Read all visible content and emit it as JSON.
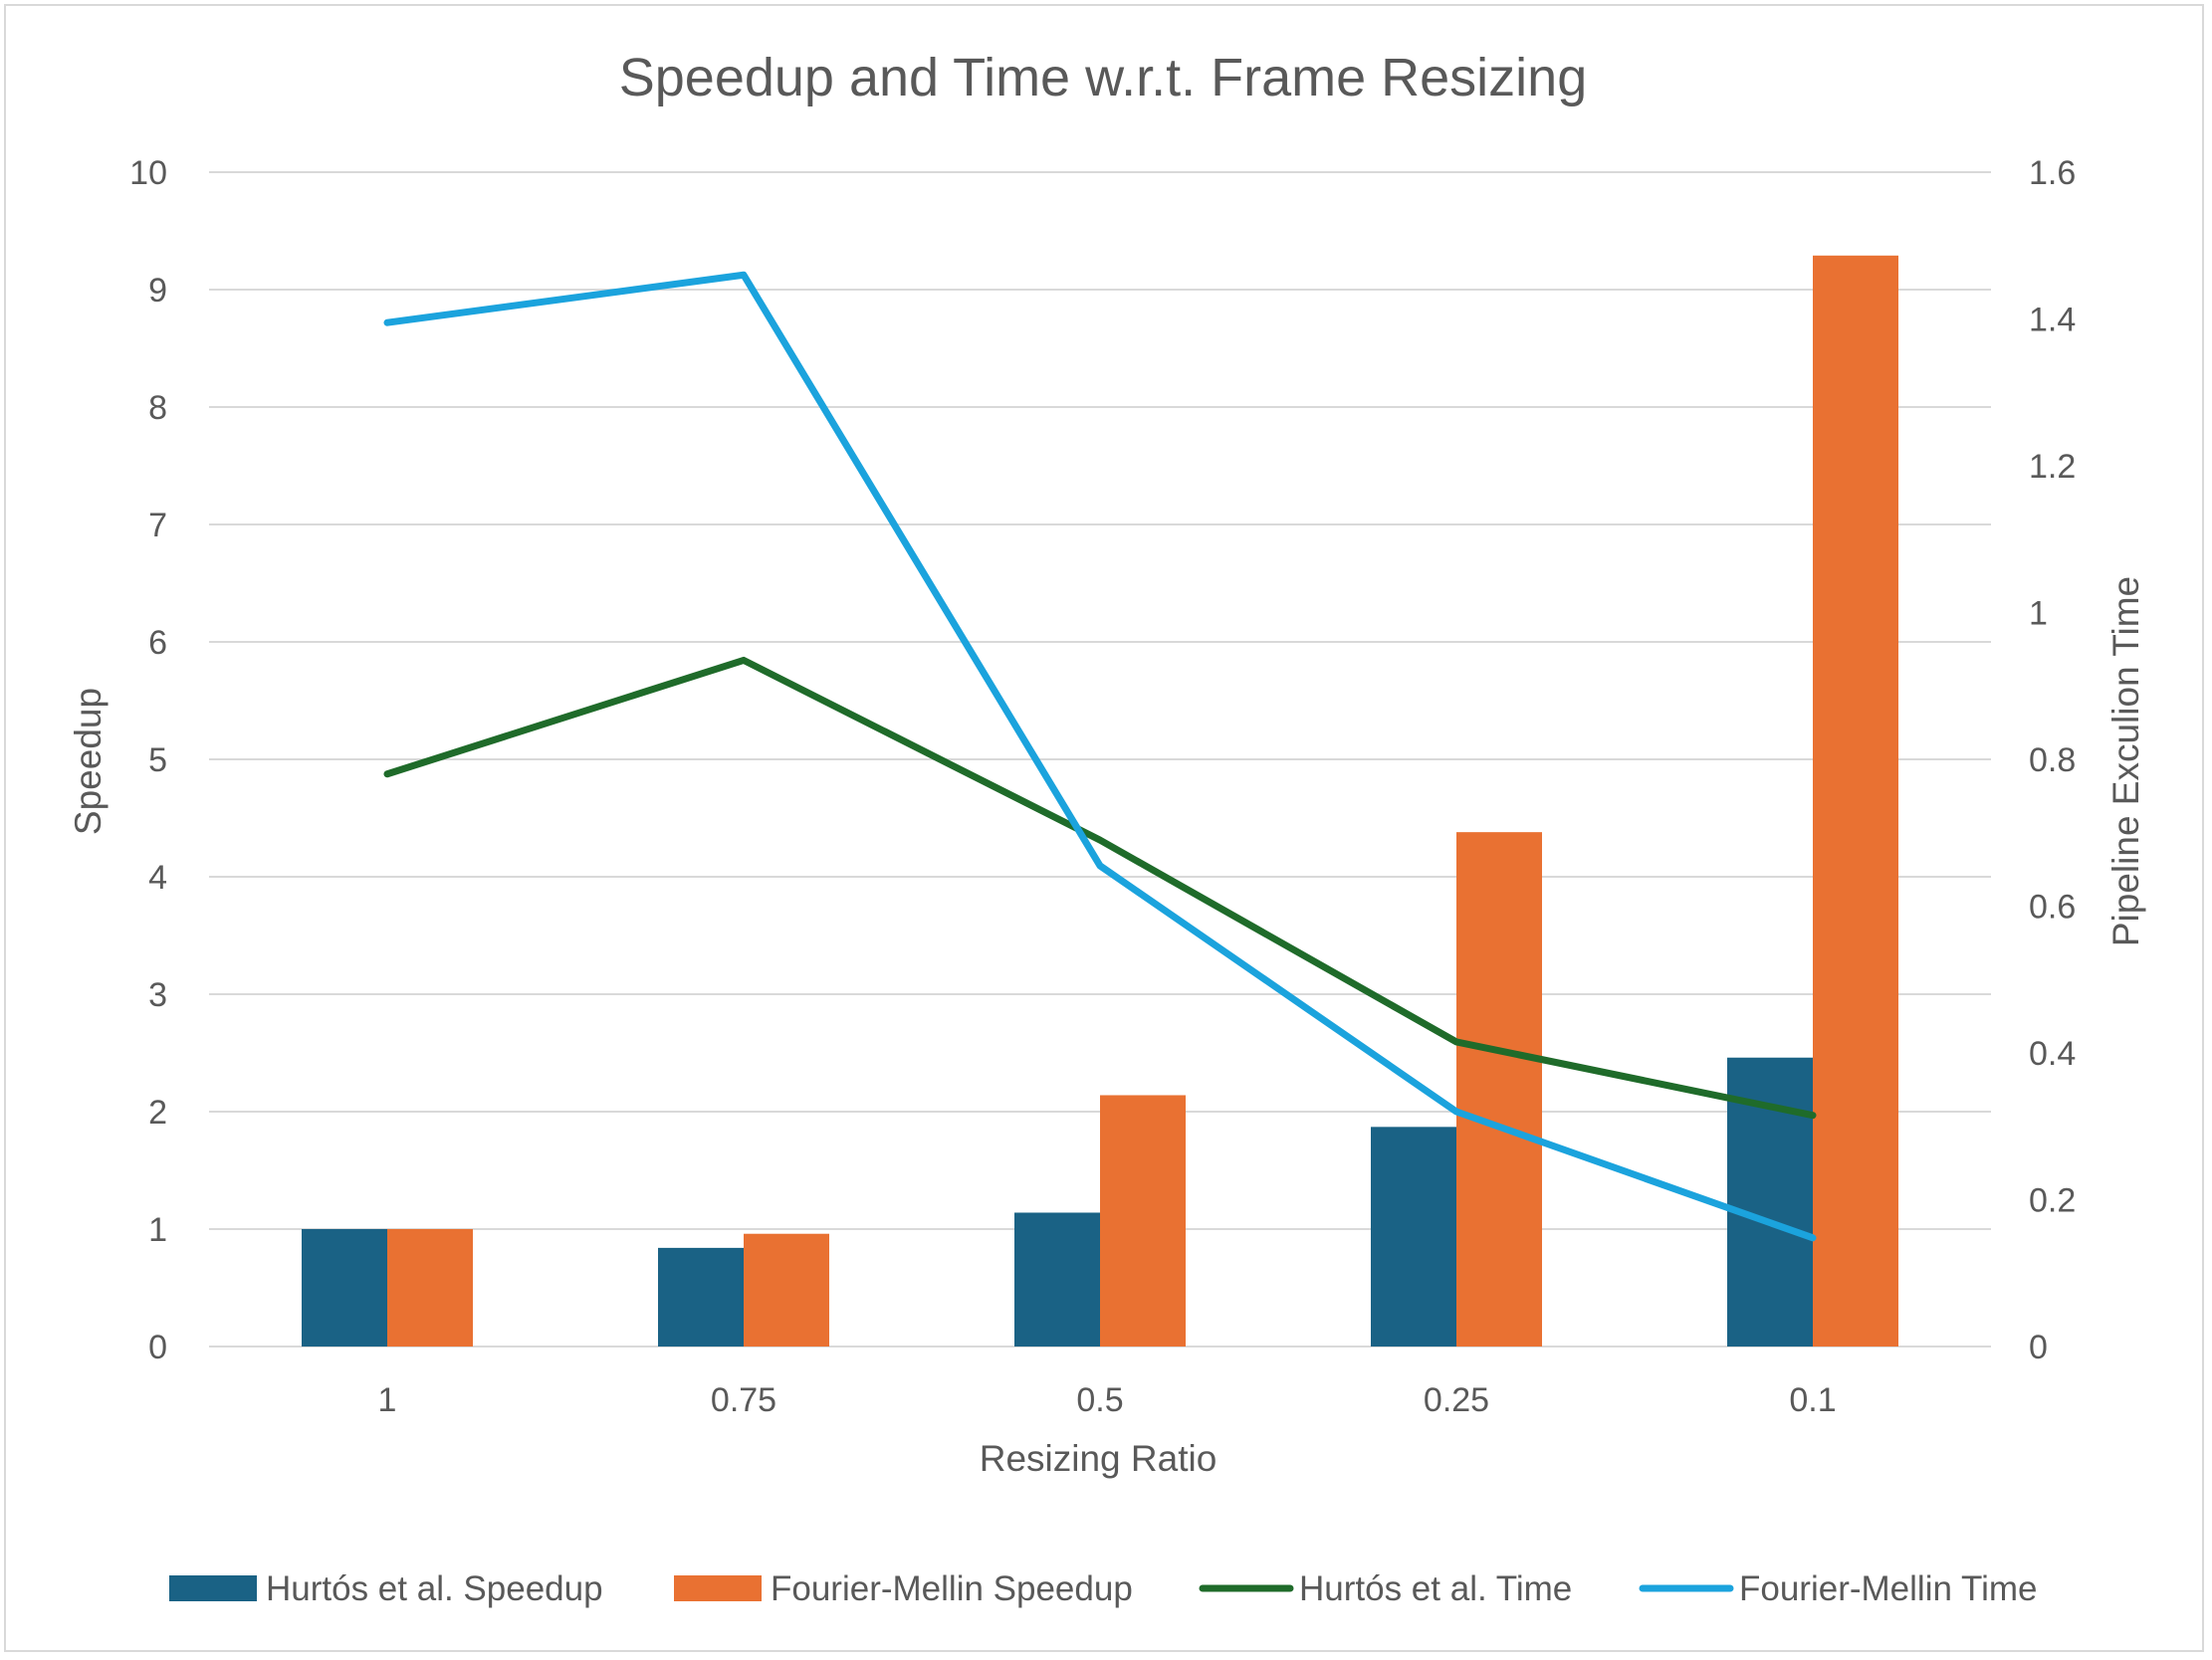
{
  "chart_data": {
    "type": "bar",
    "title": "Speedup and Time w.r.t. Frame Resizing",
    "xlabel": "Resizing Ratio",
    "ylabel": "Speedup",
    "y2label": "Pipeline Exculion Time",
    "categories": [
      "1",
      "0.75",
      "0.5",
      "0.25",
      "0.1"
    ],
    "ylim": [
      0,
      10
    ],
    "y2lim": [
      0,
      1.6
    ],
    "yticks": [
      "0",
      "1",
      "2",
      "3",
      "4",
      "5",
      "6",
      "7",
      "8",
      "9",
      "10"
    ],
    "y2ticks": [
      "0",
      "0.2",
      "0.4",
      "0.6",
      "0.8",
      "1",
      "1.2",
      "1.4",
      "1.6"
    ],
    "grid": true,
    "legend_position": "bottom",
    "series": [
      {
        "name": "Hurtós et al. Speedup",
        "kind": "bar",
        "axis": "left",
        "color": "#1a6285",
        "values": [
          1.0,
          0.84,
          1.14,
          1.87,
          2.46
        ]
      },
      {
        "name": "Fourier-Mellin Speedup",
        "kind": "bar",
        "axis": "left",
        "color": "#e97132",
        "values": [
          1.0,
          0.96,
          2.14,
          4.38,
          9.29
        ]
      },
      {
        "name": "Hurtós et al. Time",
        "kind": "line",
        "axis": "right",
        "color": "#1f6b2a",
        "values": [
          0.78,
          0.935,
          0.69,
          0.415,
          0.315
        ]
      },
      {
        "name": "Fourier-Mellin Time",
        "kind": "line",
        "axis": "right",
        "color": "#1ba3dd",
        "values": [
          1.395,
          1.46,
          0.655,
          0.32,
          0.148
        ]
      }
    ]
  }
}
